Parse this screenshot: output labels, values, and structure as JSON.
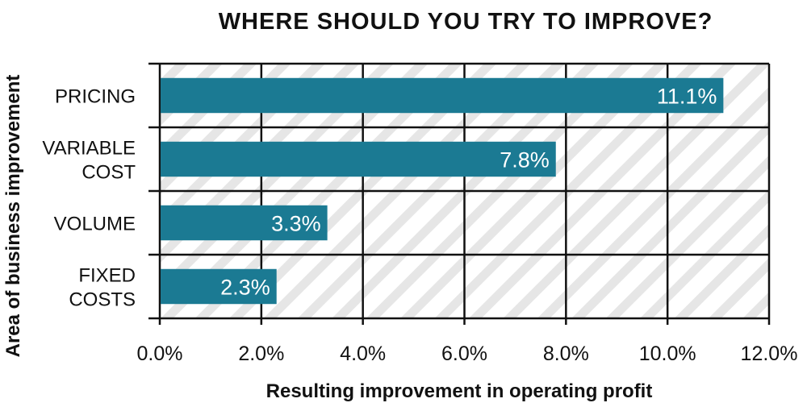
{
  "chart_data": {
    "type": "bar",
    "orientation": "horizontal",
    "title": "WHERE SHOULD YOU TRY TO IMPROVE?",
    "xlabel": "Resulting improvement in operating profit",
    "ylabel": "Area of business improvement",
    "categories": [
      [
        "PRICING"
      ],
      [
        "VARIABLE",
        "COST"
      ],
      [
        "VOLUME"
      ],
      [
        "FIXED",
        "COSTS"
      ]
    ],
    "values": [
      11.1,
      7.8,
      3.3,
      2.3
    ],
    "data_labels": [
      "11.1%",
      "7.8%",
      "3.3%",
      "2.3%"
    ],
    "xlim": [
      0,
      12
    ],
    "xticks": [
      0,
      2,
      4,
      6,
      8,
      10,
      12
    ],
    "xtick_labels": [
      "0.0%",
      "2.0%",
      "4.0%",
      "6.0%",
      "8.0%",
      "10.0%",
      "12.0%"
    ],
    "grid": true,
    "bar_color": "#1b7a93",
    "background_pattern": "diagonal-stripes"
  }
}
